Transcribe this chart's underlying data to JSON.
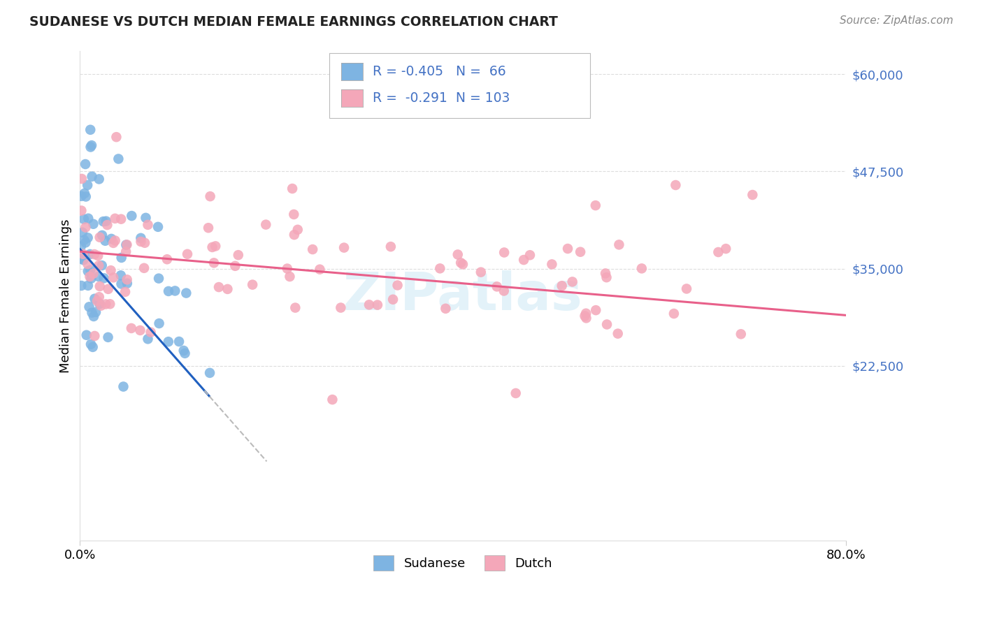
{
  "title": "SUDANESE VS DUTCH MEDIAN FEMALE EARNINGS CORRELATION CHART",
  "source": "Source: ZipAtlas.com",
  "ylabel": "Median Female Earnings",
  "yticks": [
    0,
    22500,
    35000,
    47500,
    60000
  ],
  "ytick_labels": [
    "",
    "$22,500",
    "$35,000",
    "$47,500",
    "$60,000"
  ],
  "xlim": [
    0.0,
    0.8
  ],
  "ylim": [
    0,
    63000
  ],
  "sudanese_color": "#7EB4E2",
  "dutch_color": "#F4A7B9",
  "sudanese_line_color": "#2060C0",
  "dutch_line_color": "#E8608A",
  "watermark": "ZIPatlas",
  "sudanese_R": "-0.405",
  "sudanese_N": "66",
  "dutch_R": "-0.291",
  "dutch_N": "103",
  "legend_line1": "R = -0.405   N =  66",
  "legend_line2": "R =  -0.291  N = 103",
  "sudanese_line_x0": 0.0,
  "sudanese_line_y0": 37500,
  "sudanese_line_x1": 0.175,
  "sudanese_line_y1": 13000,
  "dutch_line_x0": 0.0,
  "dutch_line_y0": 37200,
  "dutch_line_x1": 0.8,
  "dutch_line_y1": 29000
}
